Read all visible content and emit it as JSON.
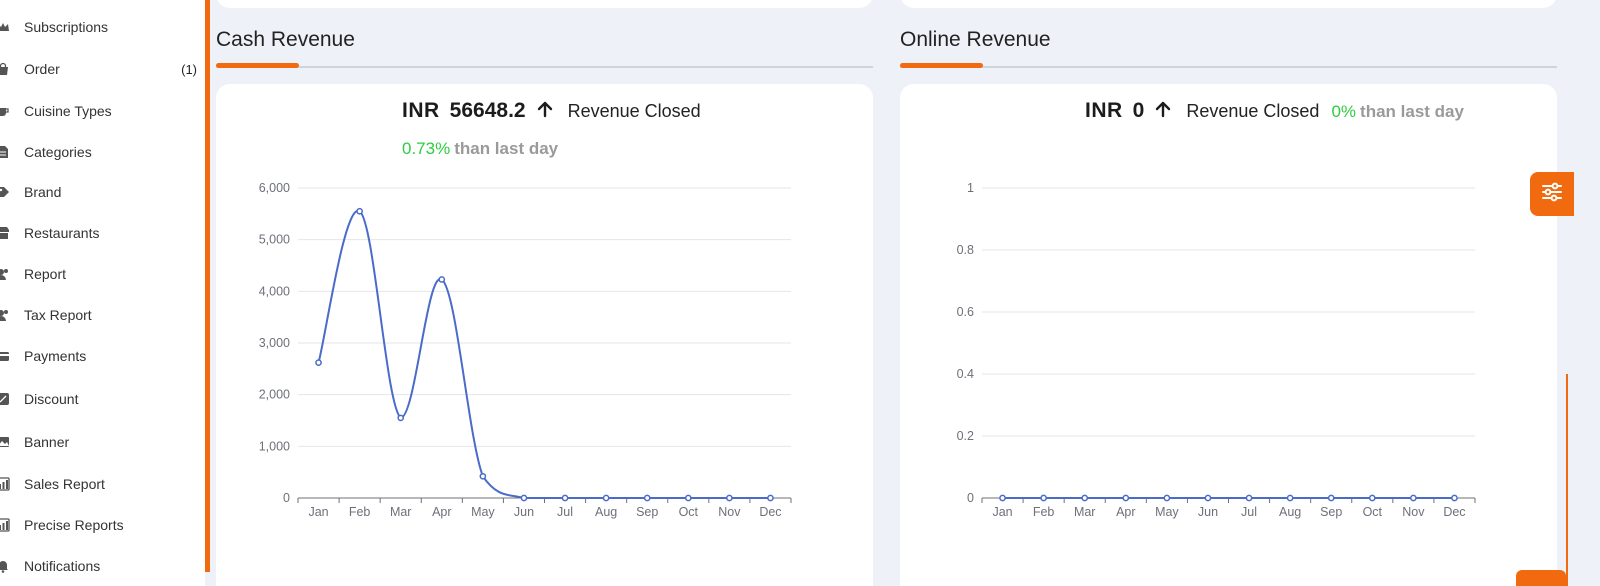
{
  "sidebar": {
    "items": [
      {
        "label": "Subscriptions",
        "icon": "crown-icon",
        "count": ""
      },
      {
        "label": "Order",
        "icon": "bag-icon",
        "count": "(1)"
      },
      {
        "label": "Cuisine Types",
        "icon": "cup-icon",
        "count": ""
      },
      {
        "label": "Categories",
        "icon": "document-icon",
        "count": ""
      },
      {
        "label": "Brand",
        "icon": "tag-icon",
        "count": ""
      },
      {
        "label": "Restaurants",
        "icon": "store-icon",
        "count": ""
      },
      {
        "label": "Report",
        "icon": "users-icon",
        "count": ""
      },
      {
        "label": "Tax Report",
        "icon": "users-icon",
        "count": ""
      },
      {
        "label": "Payments",
        "icon": "card-icon",
        "count": ""
      },
      {
        "label": "Discount",
        "icon": "percent-icon",
        "count": ""
      },
      {
        "label": "Banner",
        "icon": "image-icon",
        "count": ""
      },
      {
        "label": "Sales Report",
        "icon": "bar-chart-icon",
        "count": ""
      },
      {
        "label": "Precise Reports",
        "icon": "bar-chart-icon",
        "count": ""
      },
      {
        "label": "Notifications",
        "icon": "bell-icon",
        "count": ""
      }
    ]
  },
  "cash": {
    "title": "Cash Revenue",
    "currency": "INR",
    "value": "56648.2",
    "label": "Revenue Closed",
    "pct": "0.73%",
    "than": "than last day"
  },
  "online": {
    "title": "Online Revenue",
    "currency": "INR",
    "value": "0",
    "label": "Revenue Closed",
    "pct": "0%",
    "than": "than last day"
  },
  "colors": {
    "accent": "#f26a10",
    "line": "#4a6bc9",
    "positive": "#2ecc40",
    "muted": "#9a9a9a"
  },
  "chart_data": [
    {
      "type": "line",
      "smooth": true,
      "categories": [
        "Jan",
        "Feb",
        "Mar",
        "Apr",
        "May",
        "Jun",
        "Jul",
        "Aug",
        "Sep",
        "Oct",
        "Nov",
        "Dec"
      ],
      "series": [
        {
          "values": [
            2620,
            5550,
            1550,
            4230,
            420,
            0,
            0,
            0,
            0,
            0,
            0,
            0
          ]
        }
      ],
      "yticks": [
        "0",
        "1,000",
        "2,000",
        "3,000",
        "4,000",
        "5,000",
        "6,000"
      ],
      "ylim": [
        0,
        6000
      ],
      "grid": true
    },
    {
      "type": "line",
      "smooth": true,
      "categories": [
        "Jan",
        "Feb",
        "Mar",
        "Apr",
        "May",
        "Jun",
        "Jul",
        "Aug",
        "Sep",
        "Oct",
        "Nov",
        "Dec"
      ],
      "series": [
        {
          "values": [
            0,
            0,
            0,
            0,
            0,
            0,
            0,
            0,
            0,
            0,
            0,
            0
          ]
        }
      ],
      "yticks": [
        "0",
        "0.2",
        "0.4",
        "0.6",
        "0.8",
        "1"
      ],
      "ylim": [
        0,
        1
      ],
      "grid": true
    }
  ]
}
